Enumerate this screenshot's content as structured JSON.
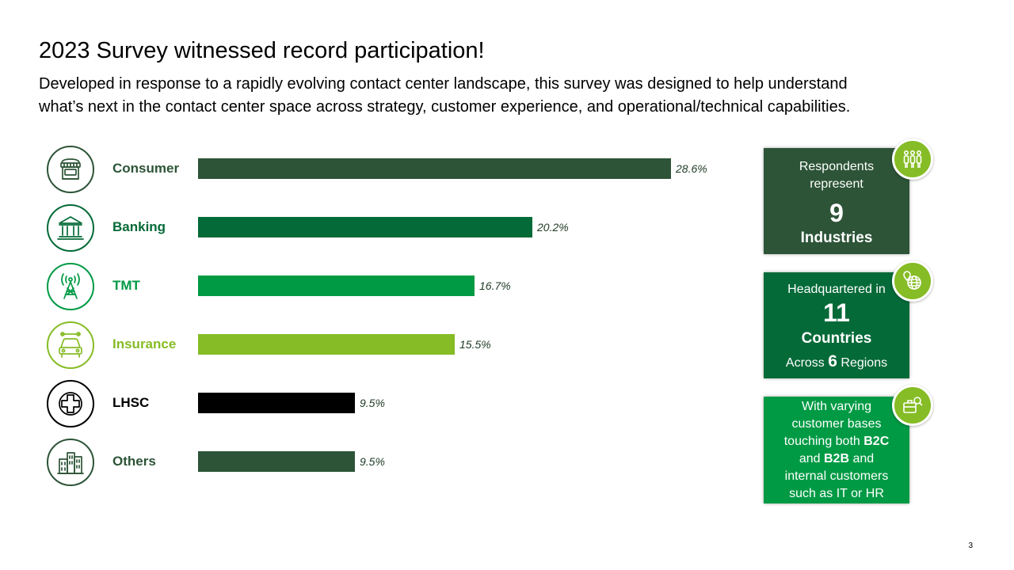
{
  "header": {
    "title": "2023 Survey witnessed record participation!",
    "subtitle_line1": "Developed in response to a rapidly evolving contact center landscape, this survey was designed to help understand",
    "subtitle_line2": "what’s next in the contact center space across strategy, customer experience, and operational/technical capabilities."
  },
  "chart_data": {
    "type": "bar",
    "orientation": "horizontal",
    "categories": [
      "Consumer",
      "Banking",
      "TMT",
      "Insurance",
      "LHSC",
      "Others"
    ],
    "values": [
      28.6,
      20.2,
      16.7,
      15.5,
      9.5,
      9.5
    ],
    "value_labels": [
      "28.6%",
      "20.2%",
      "16.7%",
      "15.5%",
      "9.5%",
      "9.5%"
    ],
    "colors": [
      "#2d5437",
      "#046a38",
      "#009a44",
      "#86bc25",
      "#000000",
      "#2d5437"
    ],
    "icons": [
      "storefront-icon",
      "bank-icon",
      "cell-tower-icon",
      "car-icon",
      "medical-cross-icon",
      "buildings-icon"
    ],
    "grid": false,
    "legend": "none"
  },
  "cards": {
    "industries": {
      "line1": "Respondents",
      "line2": "represent",
      "number": "9",
      "label": "Industries",
      "color": "#2d5437",
      "icon": "people-icon"
    },
    "countries": {
      "line1": "Headquartered in",
      "number": "11",
      "label": "Countries",
      "across_prefix": "Across",
      "across_number": "6",
      "across_suffix": "Regions",
      "color": "#046a38",
      "icon": "globe-pin-icon"
    },
    "customers": {
      "l1": "With varying",
      "l2": "customer bases",
      "l3_prefix": "touching both",
      "b2c": "B2C",
      "l4_and": "and",
      "b2b": "B2B",
      "l4_suffix": "and",
      "l5": "internal customers",
      "l6": "such as IT or HR",
      "color": "#009a44",
      "icon": "briefcase-search-icon"
    }
  },
  "page_number": "3"
}
